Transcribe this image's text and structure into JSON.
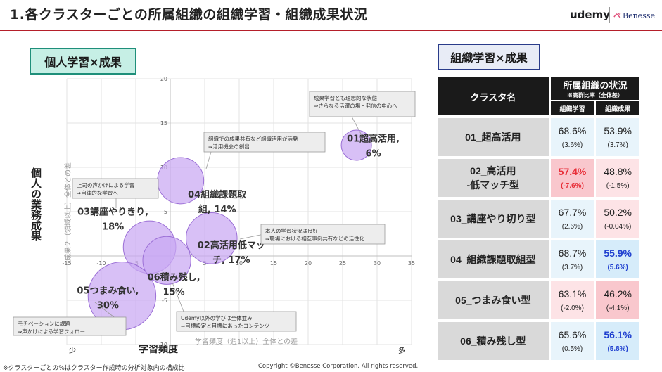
{
  "header": {
    "title": "1.各クラスターごとの所属組織の組織学習・組織成果状況",
    "udemy_logo": "udemy",
    "benesse_logo": "Benesse",
    "colors": {
      "accent": "#b51f2a",
      "bubble": "#c9a8f2",
      "bubble_stroke": "#9b6fd6",
      "red": "#e8303a",
      "blue": "#1f3fcf"
    }
  },
  "left_panel": {
    "label": "個人学習×成果",
    "y_main_label": "個人の業務成果",
    "x_main_label": "学習頻度",
    "low_label": "少",
    "high_label": "多"
  },
  "chart_data": {
    "type": "scatter",
    "subtype": "bubble",
    "xlabel": "学習頻度（週1以上）全体との差",
    "ylabel": "成果２（領域以上）全体との差",
    "xlim": [
      -15,
      35
    ],
    "ylim": [
      -10,
      20
    ],
    "x_ticks": [
      -15,
      -10,
      -5,
      0,
      5,
      10,
      15,
      20,
      25,
      30,
      35
    ],
    "y_ticks": [
      -10,
      -5,
      0,
      5,
      10,
      15,
      20
    ],
    "x_tick_labels": [
      "-15",
      "-10",
      "-5",
      "",
      "5",
      "10",
      "15",
      "20",
      "25",
      "30",
      "35"
    ],
    "y_tick_labels": [
      "-10",
      "-5",
      "",
      "5",
      "10",
      "15",
      "20"
    ],
    "grid": true,
    "points": [
      {
        "label_line1": "01超高活用,",
        "label_line2": "6%",
        "x": 27,
        "y": 12.5,
        "size": 6
      },
      {
        "label_line1": "02高活用低マッ",
        "label_line2": "チ, 17%",
        "x": 6,
        "y": 2,
        "size": 17
      },
      {
        "label_line1": "03講座やりきり,",
        "label_line2": "18%",
        "x": -3,
        "y": 1,
        "size": 18
      },
      {
        "label_line1": "04組織課題取",
        "label_line2": "組, 14%",
        "x": 1.5,
        "y": 8.5,
        "size": 14
      },
      {
        "label_line1": "05つまみ食い,",
        "label_line2": "30%",
        "x": -7,
        "y": -4.5,
        "size": 30
      },
      {
        "label_line1": "06積み残し,",
        "label_line2": "15%",
        "x": -0.5,
        "y": -0.5,
        "size": 15
      }
    ],
    "annotations": [
      {
        "line1": "成果学習とも理想的な状態",
        "line2": "⇒さらなる活躍の場・発信の中心へ"
      },
      {
        "line1": "組織での成果共有など組織活用が活発",
        "line2": "⇒活用機会の創出"
      },
      {
        "line1": "上司の声かけによる学習",
        "line2": "⇒自律的な学習へ"
      },
      {
        "line1": "本人の学習状況は良好",
        "line2": "⇒職場における相互事例共有などの活性化"
      },
      {
        "line1": "モチベーションに課題",
        "line2": "⇒声かけによる学習フォロー"
      },
      {
        "line1": "Udemy以外の学びは全体並み",
        "line2": "⇒目標設定と目標にあったコンテンツ"
      }
    ]
  },
  "right_panel": {
    "label": "組織学習×成果",
    "table": {
      "col_cluster": "クラスタ名",
      "col_group_title": "所属組織の状況",
      "col_group_sub": "※高群比率（全体差）",
      "col_learning": "組織学習",
      "col_outcome": "組織成果",
      "rows": [
        {
          "name1": "01_超高活用",
          "name2": "",
          "learning": "68.6%",
          "learning_diff": "(3.6%)",
          "outcome": "53.9%",
          "outcome_diff": "(3.7%)",
          "learning_state": "normal",
          "outcome_state": "normal"
        },
        {
          "name1": "02_高活用",
          "name2": "-低マッチ型",
          "learning": "57.4%",
          "learning_diff": "(-7.6%)",
          "outcome": "48.8%",
          "outcome_diff": "(-1.5%)",
          "learning_state": "low",
          "outcome_state": "light-low"
        },
        {
          "name1": "03_講座やり切り型",
          "name2": "",
          "learning": "67.7%",
          "learning_diff": "(2.6%)",
          "outcome": "50.2%",
          "outcome_diff": "(-0.04%)",
          "learning_state": "normal",
          "outcome_state": "light-low"
        },
        {
          "name1": "04_組織課題取組型",
          "name2": "",
          "learning": "68.7%",
          "learning_diff": "(3.7%)",
          "outcome": "55.9%",
          "outcome_diff": "(5.6%)",
          "learning_state": "normal",
          "outcome_state": "high"
        },
        {
          "name1": "05_つまみ食い型",
          "name2": "",
          "learning": "63.1%",
          "learning_diff": "(-2.0%)",
          "outcome": "46.2%",
          "outcome_diff": "(-4.1%)",
          "learning_state": "light-low",
          "outcome_state": "mid-low"
        },
        {
          "name1": "06_積み残し型",
          "name2": "",
          "learning": "65.6%",
          "learning_diff": "(0.5%)",
          "outcome": "56.1%",
          "outcome_diff": "(5.8%)",
          "learning_state": "normal",
          "outcome_state": "high"
        }
      ]
    }
  },
  "footer": {
    "footnote": "※クラスターごとの%はクラスター作成時の分析対象内の構成比",
    "copyright": "Copyright ©Benesse Corporation. All rights reserved."
  }
}
